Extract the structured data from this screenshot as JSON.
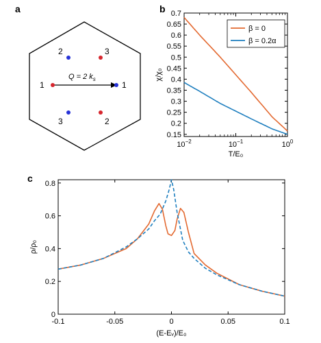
{
  "colors": {
    "orange": "#E3682F",
    "blue": "#1F7FBF",
    "red": "#D7262E",
    "ptblue": "#2632D7"
  },
  "panel_a": {
    "letter": "a",
    "q_label": "Q = 2 k",
    "q_sub": "s",
    "points": [
      {
        "label": "1",
        "color": "red"
      },
      {
        "label": "1",
        "color": "blue"
      },
      {
        "label": "2",
        "color": "blue"
      },
      {
        "label": "3",
        "color": "red"
      },
      {
        "label": "3",
        "color": "blue"
      },
      {
        "label": "2",
        "color": "red"
      }
    ]
  },
  "chart_data": [
    {
      "panel": "b",
      "type": "line",
      "xlabel": "T/E₀",
      "ylabel": "χ/χ₀",
      "xscale": "log",
      "xlim": [
        0.01,
        1
      ],
      "ylim": [
        0.14,
        0.7
      ],
      "x_ticks": [
        {
          "v": 0.01,
          "b": "10",
          "e": "−2"
        },
        {
          "v": 0.1,
          "b": "10",
          "e": "−1"
        },
        {
          "v": 1,
          "b": "10",
          "e": "0"
        }
      ],
      "y_ticks": [
        "0.15",
        "0.2",
        "0.25",
        "0.3",
        "0.35",
        "0.4",
        "0.45",
        "0.5",
        "0.55",
        "0.6",
        "0.65",
        "0.7"
      ],
      "legend_position": "top-right",
      "series": [
        {
          "name": "β = 0",
          "color": "orange",
          "style": "solid",
          "x": [
            0.01,
            0.02,
            0.05,
            0.1,
            0.2,
            0.5,
            1
          ],
          "y": [
            0.68,
            0.6,
            0.5,
            0.42,
            0.34,
            0.23,
            0.165
          ]
        },
        {
          "name": "β = 0.2α",
          "color": "blue",
          "style": "solid",
          "x": [
            0.01,
            0.02,
            0.05,
            0.1,
            0.2,
            0.5,
            1
          ],
          "y": [
            0.385,
            0.345,
            0.29,
            0.255,
            0.22,
            0.175,
            0.15
          ]
        }
      ]
    },
    {
      "panel": "c",
      "type": "line",
      "xlabel": "(E-Eᵥ)/E₀",
      "ylabel": "ρ/ρ₀",
      "xlim": [
        -0.1,
        0.1
      ],
      "ylim": [
        0,
        0.82
      ],
      "x_ticks": [
        "-0.1",
        "-0.05",
        "0",
        "0.05",
        "0.1"
      ],
      "y_ticks": [
        "0",
        "0.2",
        "0.4",
        "0.6",
        "0.8"
      ],
      "series": [
        {
          "color": "orange",
          "style": "solid",
          "x": [
            -0.1,
            -0.08,
            -0.06,
            -0.04,
            -0.03,
            -0.02,
            -0.015,
            -0.011,
            -0.008,
            -0.005,
            -0.003,
            0,
            0.003,
            0.005,
            0.008,
            0.011,
            0.015,
            0.02,
            0.03,
            0.04,
            0.06,
            0.08,
            0.1
          ],
          "y": [
            0.275,
            0.3,
            0.34,
            0.4,
            0.46,
            0.55,
            0.63,
            0.675,
            0.64,
            0.54,
            0.49,
            0.48,
            0.51,
            0.58,
            0.645,
            0.62,
            0.5,
            0.37,
            0.3,
            0.25,
            0.18,
            0.14,
            0.11
          ]
        },
        {
          "color": "blue",
          "style": "dashed",
          "x": [
            -0.1,
            -0.08,
            -0.06,
            -0.04,
            -0.03,
            -0.02,
            -0.015,
            -0.01,
            -0.005,
            -0.002,
            0,
            0.002,
            0.005,
            0.01,
            0.015,
            0.02,
            0.03,
            0.04,
            0.06,
            0.08,
            0.1
          ],
          "y": [
            0.275,
            0.3,
            0.34,
            0.41,
            0.46,
            0.52,
            0.57,
            0.61,
            0.69,
            0.76,
            0.82,
            0.76,
            0.62,
            0.45,
            0.38,
            0.34,
            0.28,
            0.24,
            0.18,
            0.14,
            0.11
          ]
        }
      ]
    }
  ]
}
